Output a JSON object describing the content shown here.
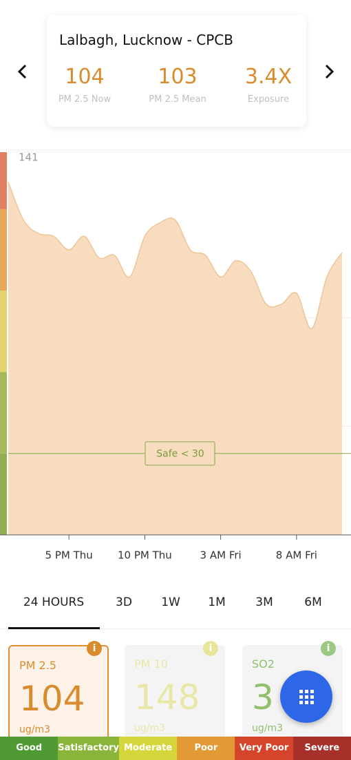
{
  "header": {
    "station": "Lalbagh, Lucknow - CPCB",
    "stats": [
      {
        "value": "104",
        "label": "PM 2.5 Now"
      },
      {
        "value": "103",
        "label": "PM 2.5 Mean"
      },
      {
        "value": "3.4X",
        "label": "Exposure"
      }
    ]
  },
  "chart_data": {
    "type": "area",
    "color": "#f7dcc0",
    "line_color": "#efc598",
    "categories": [
      null,
      null,
      null,
      null,
      "5 PM Thu",
      null,
      null,
      null,
      null,
      "10 PM Thu",
      null,
      null,
      null,
      null,
      "3 AM Fri",
      null,
      null,
      null,
      null,
      "8 AM Fri",
      null,
      null,
      null
    ],
    "values": [
      130,
      116,
      111,
      110,
      105,
      110,
      102,
      103,
      95,
      110,
      115,
      116,
      105,
      103,
      95,
      101,
      97,
      85,
      85,
      89,
      76,
      95,
      104
    ],
    "ylim": [
      0,
      141
    ],
    "yticks": [
      0,
      40,
      80,
      141
    ],
    "safe_line": {
      "value": 30,
      "label": "Safe < 30"
    },
    "bands": [
      {
        "from": 0,
        "to": 30,
        "color": "#93ad55"
      },
      {
        "from": 30,
        "to": 60,
        "color": "#a6b85e"
      },
      {
        "from": 60,
        "to": 90,
        "color": "#e6d370"
      },
      {
        "from": 90,
        "to": 120,
        "color": "#e8a85c"
      },
      {
        "from": 120,
        "to": 141,
        "color": "#e17f62"
      }
    ]
  },
  "tabs": {
    "items": [
      "24 HOURS",
      "3D",
      "1W",
      "1M",
      "3M",
      "6M"
    ],
    "selected": 0
  },
  "cards": [
    {
      "name": "PM 2.5",
      "value": "104",
      "unit": "ug/m3"
    },
    {
      "name": "PM 10",
      "value": "148",
      "unit": "ug/m3"
    },
    {
      "name": "SO2",
      "value": "3",
      "unit": "ug/m3"
    }
  ],
  "legend": [
    {
      "label": "Good",
      "color": "#4f9a32"
    },
    {
      "label": "Satisfactory",
      "color": "#88b53a"
    },
    {
      "label": "Moderate",
      "color": "#d5d63c"
    },
    {
      "label": "Poor",
      "color": "#e39a36"
    },
    {
      "label": "Very Poor",
      "color": "#d4452c"
    },
    {
      "label": "Severe",
      "color": "#a8302b"
    }
  ]
}
